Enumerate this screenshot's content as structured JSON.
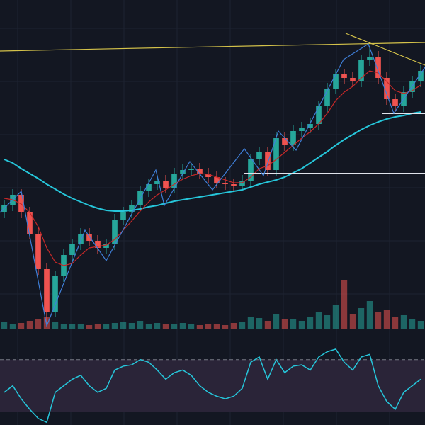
{
  "chart_data": {
    "type": "candlestick",
    "background": "#131722",
    "grid": true,
    "ylim": [
      130,
      600
    ],
    "up_color": "#26a69a",
    "down_color": "#ef5350",
    "open": [
      300,
      310,
      325,
      300,
      270,
      220,
      160,
      210,
      240,
      255,
      270,
      260,
      250,
      255,
      290,
      300,
      310,
      330,
      340,
      345,
      335,
      355,
      360,
      362,
      355,
      350,
      342,
      340,
      338,
      345,
      375,
      385,
      360,
      405,
      395,
      415,
      420,
      425,
      450,
      475,
      495,
      490,
      485,
      515,
      520,
      490,
      460,
      450,
      470,
      485
    ],
    "high": [
      318,
      333,
      333,
      308,
      278,
      228,
      218,
      248,
      263,
      278,
      278,
      268,
      263,
      298,
      308,
      318,
      338,
      348,
      353,
      353,
      363,
      368,
      370,
      370,
      363,
      358,
      350,
      348,
      353,
      383,
      393,
      393,
      413,
      413,
      423,
      428,
      433,
      458,
      483,
      503,
      503,
      498,
      523,
      535,
      528,
      498,
      468,
      478,
      493,
      508
    ],
    "low": [
      292,
      302,
      292,
      262,
      212,
      140,
      152,
      202,
      232,
      247,
      252,
      242,
      242,
      247,
      282,
      292,
      302,
      322,
      332,
      327,
      327,
      347,
      352,
      347,
      342,
      334,
      332,
      330,
      330,
      337,
      367,
      352,
      352,
      387,
      387,
      407,
      412,
      417,
      442,
      467,
      482,
      477,
      477,
      507,
      482,
      452,
      442,
      442,
      462,
      477
    ],
    "close": [
      310,
      325,
      300,
      270,
      220,
      160,
      210,
      240,
      255,
      270,
      260,
      250,
      255,
      290,
      300,
      310,
      330,
      340,
      345,
      335,
      355,
      360,
      362,
      355,
      350,
      342,
      340,
      338,
      345,
      375,
      385,
      360,
      405,
      395,
      415,
      420,
      425,
      450,
      475,
      495,
      490,
      485,
      515,
      520,
      490,
      460,
      450,
      470,
      485,
      500
    ],
    "series": [
      {
        "color": "#26c6da",
        "values": [
          375,
          370,
          362,
          355,
          348,
          340,
          333,
          326,
          320,
          315,
          310,
          306,
          303,
          302,
          302,
          303,
          305,
          308,
          310,
          313,
          316,
          318,
          320,
          322,
          324,
          326,
          328,
          330,
          332,
          336,
          340,
          343,
          346,
          350,
          356,
          362,
          370,
          378,
          386,
          395,
          403,
          410,
          417,
          423,
          428,
          432,
          435,
          437,
          440,
          442
        ]
      },
      {
        "color": "#c62828",
        "values": [
          320,
          318,
          312,
          300,
          280,
          250,
          230,
          225,
          228,
          240,
          250,
          252,
          254,
          262,
          275,
          288,
          302,
          315,
          325,
          332,
          340,
          347,
          352,
          355,
          354,
          350,
          346,
          342,
          342,
          350,
          362,
          366,
          375,
          385,
          395,
          405,
          414,
          425,
          440,
          458,
          470,
          478,
          490,
          500,
          497,
          485,
          472,
          468,
          472,
          480
        ]
      }
    ],
    "volume": {
      "ylim": [
        0,
        120
      ],
      "values": [
        10,
        8,
        9,
        12,
        14,
        18,
        10,
        8,
        7,
        8,
        6,
        7,
        8,
        9,
        10,
        9,
        12,
        8,
        9,
        7,
        8,
        9,
        7,
        6,
        8,
        7,
        6,
        9,
        10,
        18,
        16,
        12,
        22,
        14,
        15,
        12,
        18,
        25,
        20,
        35,
        70,
        22,
        30,
        40,
        25,
        28,
        18,
        20,
        15,
        12
      ]
    },
    "rsi": {
      "color": "#26c6da",
      "band_color": "#2a2438",
      "ylim": [
        20,
        85
      ],
      "levels": [
        70,
        30
      ],
      "values": [
        45,
        50,
        40,
        32,
        25,
        22,
        45,
        50,
        55,
        58,
        50,
        45,
        48,
        62,
        65,
        66,
        70,
        68,
        62,
        55,
        60,
        62,
        58,
        50,
        45,
        42,
        40,
        42,
        48,
        68,
        72,
        55,
        70,
        60,
        65,
        66,
        62,
        72,
        76,
        78,
        68,
        62,
        72,
        74,
        50,
        38,
        32,
        45,
        50,
        55
      ]
    }
  }
}
